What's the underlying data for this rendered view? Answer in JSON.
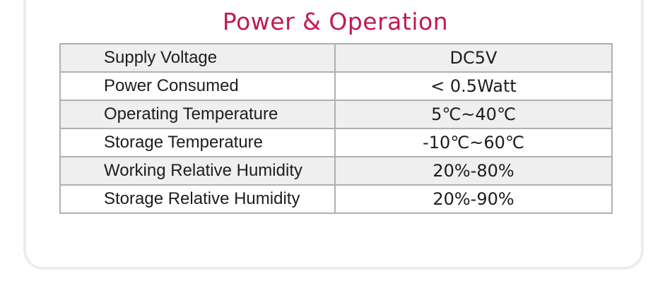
{
  "page": {
    "title": "Power & Operation",
    "accent_color": "#c21a4e"
  },
  "spec_table": {
    "rows": [
      {
        "label": "Supply Voltage",
        "value": "DC5V"
      },
      {
        "label": "Power Consumed",
        "value": "< 0.5Watt"
      },
      {
        "label": "Operating Temperature",
        "value": "5℃~40℃"
      },
      {
        "label": "Storage Temperature",
        "value": "-10℃~60℃"
      },
      {
        "label": "Working Relative Humidity",
        "value": "20%-80%"
      },
      {
        "label": "Storage Relative Humidity",
        "value": "20%-90%"
      }
    ],
    "colors": {
      "alt_row_bg": "#efefef",
      "row_bg": "#ffffff",
      "border": "#b0b0b0"
    }
  }
}
